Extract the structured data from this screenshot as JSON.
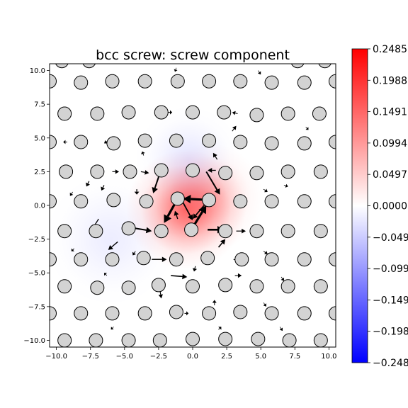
{
  "chart_data": {
    "type": "heatmap",
    "title": "bcc screw: screw component",
    "xlabel": "",
    "ylabel": "",
    "xlim": [
      -10.5,
      10.5
    ],
    "ylim": [
      -10.5,
      10.5
    ],
    "xticks": [
      "−10.0",
      "−7.5",
      "−5.0",
      "−2.5",
      "0.0",
      "2.5",
      "5.0",
      "7.5",
      "10.0"
    ],
    "yticks": [
      "10.0",
      "7.5",
      "5.0",
      "2.5",
      "0.0",
      "−2.5",
      "−5.0",
      "−7.5",
      "−10.0"
    ],
    "colormap": "bwr",
    "colorbar": {
      "range": [
        -0.2485,
        0.2485
      ],
      "ticks": [
        "0.2485",
        "0.1988",
        "0.1491",
        "0.0994",
        "0.0497",
        "0.0000",
        "−0.0497",
        "−0.0994",
        "−0.1491",
        "−0.1988",
        "−0.2485"
      ],
      "colors": {
        "max": "#ff0000",
        "mid": "#ffffff",
        "min": "#0000ff"
      }
    },
    "field_peaks": [
      {
        "x": -0.5,
        "y": -0.3,
        "value": 0.14,
        "spread": 2.2
      },
      {
        "x": 1.2,
        "y": 0.6,
        "value": 0.06,
        "spread": 2.0
      },
      {
        "x": -0.3,
        "y": 3.4,
        "value": -0.025,
        "spread": 2.0
      },
      {
        "x": -6.0,
        "y": -2.5,
        "value": -0.018,
        "spread": 2.5
      }
    ],
    "atoms": {
      "marker_color": "#d3d3d3",
      "edge_color": "#000000",
      "positions": [
        {
          "x": -9.6,
          "y": 10.7
        },
        {
          "x": -7.6,
          "y": 10.7
        },
        {
          "x": 7.7,
          "y": 10.7
        },
        {
          "x": 9.7,
          "y": 10.7
        },
        {
          "x": -10.5,
          "y": 9.2
        },
        {
          "x": -8.2,
          "y": 9.1
        },
        {
          "x": -5.9,
          "y": 9.2
        },
        {
          "x": -3.5,
          "y": 9.2
        },
        {
          "x": -1.1,
          "y": 9.2
        },
        {
          "x": 1.2,
          "y": 9.2
        },
        {
          "x": 3.5,
          "y": 9.2
        },
        {
          "x": 5.8,
          "y": 9.1
        },
        {
          "x": 8.2,
          "y": 9.1
        },
        {
          "x": 10.5,
          "y": 9.2
        },
        {
          "x": -9.4,
          "y": 6.8
        },
        {
          "x": -7.0,
          "y": 6.8
        },
        {
          "x": -4.7,
          "y": 6.9
        },
        {
          "x": -2.3,
          "y": 6.9
        },
        {
          "x": 0.0,
          "y": 6.9
        },
        {
          "x": 2.3,
          "y": 6.9
        },
        {
          "x": 4.7,
          "y": 6.7
        },
        {
          "x": 7.0,
          "y": 6.8
        },
        {
          "x": 9.3,
          "y": 6.8
        },
        {
          "x": -10.5,
          "y": 4.7
        },
        {
          "x": -8.2,
          "y": 4.7
        },
        {
          "x": -5.8,
          "y": 4.6
        },
        {
          "x": -3.5,
          "y": 4.8
        },
        {
          "x": -1.2,
          "y": 4.8
        },
        {
          "x": 1.2,
          "y": 4.8
        },
        {
          "x": 3.5,
          "y": 4.7
        },
        {
          "x": 5.8,
          "y": 4.6
        },
        {
          "x": 8.2,
          "y": 4.6
        },
        {
          "x": 10.5,
          "y": 4.7
        },
        {
          "x": -9.3,
          "y": 2.5
        },
        {
          "x": -7.0,
          "y": 2.5
        },
        {
          "x": -4.6,
          "y": 2.5
        },
        {
          "x": -2.3,
          "y": 2.6
        },
        {
          "x": 0.0,
          "y": 2.6
        },
        {
          "x": 2.4,
          "y": 2.4
        },
        {
          "x": 4.7,
          "y": 2.4
        },
        {
          "x": 7.0,
          "y": 2.5
        },
        {
          "x": 9.4,
          "y": 2.5
        },
        {
          "x": -10.5,
          "y": 0.3
        },
        {
          "x": -8.2,
          "y": 0.3
        },
        {
          "x": -5.8,
          "y": 0.4
        },
        {
          "x": -3.4,
          "y": 0.3
        },
        {
          "x": -1.1,
          "y": 0.5
        },
        {
          "x": 1.2,
          "y": 0.4
        },
        {
          "x": 3.5,
          "y": 0.3
        },
        {
          "x": 5.8,
          "y": 0.3
        },
        {
          "x": 8.2,
          "y": 0.3
        },
        {
          "x": 10.5,
          "y": 0.3
        },
        {
          "x": -9.4,
          "y": -1.9
        },
        {
          "x": -7.1,
          "y": -1.9
        },
        {
          "x": -4.7,
          "y": -1.7
        },
        {
          "x": -2.3,
          "y": -1.9
        },
        {
          "x": -0.1,
          "y": -1.8
        },
        {
          "x": 2.4,
          "y": -1.9
        },
        {
          "x": 4.7,
          "y": -1.9
        },
        {
          "x": 7.0,
          "y": -1.9
        },
        {
          "x": 9.4,
          "y": -1.9
        },
        {
          "x": -10.5,
          "y": -4.0
        },
        {
          "x": -8.2,
          "y": -4.0
        },
        {
          "x": -5.9,
          "y": -4.0
        },
        {
          "x": -3.6,
          "y": -3.9
        },
        {
          "x": -1.2,
          "y": -4.0
        },
        {
          "x": 1.1,
          "y": -3.9
        },
        {
          "x": 3.6,
          "y": -4.0
        },
        {
          "x": 5.8,
          "y": -4.0
        },
        {
          "x": 8.2,
          "y": -4.0
        },
        {
          "x": 10.5,
          "y": -4.0
        },
        {
          "x": -9.4,
          "y": -6.0
        },
        {
          "x": -7.0,
          "y": -6.1
        },
        {
          "x": -4.7,
          "y": -6.1
        },
        {
          "x": -2.5,
          "y": -5.9
        },
        {
          "x": 0.0,
          "y": -6.0
        },
        {
          "x": 2.4,
          "y": -5.9
        },
        {
          "x": 4.7,
          "y": -6.0
        },
        {
          "x": 7.0,
          "y": -6.0
        },
        {
          "x": 9.4,
          "y": -6.0
        },
        {
          "x": -10.5,
          "y": -8.0
        },
        {
          "x": -8.2,
          "y": -8.0
        },
        {
          "x": -5.9,
          "y": -8.0
        },
        {
          "x": -3.5,
          "y": -8.0
        },
        {
          "x": -1.2,
          "y": -7.9
        },
        {
          "x": 1.2,
          "y": -8.0
        },
        {
          "x": 3.5,
          "y": -7.9
        },
        {
          "x": 5.8,
          "y": -8.0
        },
        {
          "x": 8.2,
          "y": -8.0
        },
        {
          "x": 10.5,
          "y": -8.0
        },
        {
          "x": -9.4,
          "y": -10.0
        },
        {
          "x": -7.1,
          "y": -10.0
        },
        {
          "x": -4.7,
          "y": -10.0
        },
        {
          "x": -2.4,
          "y": -10.0
        },
        {
          "x": 0.0,
          "y": -9.9
        },
        {
          "x": 2.4,
          "y": -9.9
        },
        {
          "x": 4.8,
          "y": -9.9
        },
        {
          "x": 7.1,
          "y": -10.0
        },
        {
          "x": 9.4,
          "y": -10.0
        }
      ]
    },
    "arrows": [
      {
        "x1": 1.2,
        "y1": 0.4,
        "x2": -0.7,
        "y2": 0.5,
        "weight": 3.2
      },
      {
        "x1": -1.1,
        "y1": 0.5,
        "x2": -2.1,
        "y2": -1.3,
        "weight": 3.2
      },
      {
        "x1": -0.1,
        "y1": -1.8,
        "x2": 1.0,
        "y2": 0.0,
        "weight": 3.2
      },
      {
        "x1": 1.1,
        "y1": -1.8,
        "x2": 2.3,
        "y2": -1.8,
        "weight": 2.6
      },
      {
        "x1": 1.0,
        "y1": 2.5,
        "x2": 2.0,
        "y2": 0.8,
        "weight": 2.0
      },
      {
        "x1": -2.4,
        "y1": 2.4,
        "x2": -2.9,
        "y2": 0.9,
        "weight": 2.0
      },
      {
        "x1": -4.2,
        "y1": -1.7,
        "x2": -3.0,
        "y2": -1.9,
        "weight": 2.0
      },
      {
        "x1": -0.7,
        "y1": 0.2,
        "x2": 0.0,
        "y2": -1.1,
        "weight": 1.8
      },
      {
        "x1": 1.0,
        "y1": 0.2,
        "x2": 0.0,
        "y2": -1.0,
        "weight": 1.6
      },
      {
        "x1": -1.1,
        "y1": -1.0,
        "x2": -1.3,
        "y2": -0.4,
        "weight": 1.4
      },
      {
        "x1": 1.9,
        "y1": -3.1,
        "x2": 2.4,
        "y2": -2.5,
        "weight": 1.6
      },
      {
        "x1": -1.6,
        "y1": -5.2,
        "x2": -0.4,
        "y2": -5.3,
        "weight": 1.6
      },
      {
        "x1": -3.0,
        "y1": -4.0,
        "x2": -1.9,
        "y2": -4.0,
        "weight": 1.5
      },
      {
        "x1": -5.5,
        "y1": -2.7,
        "x2": -6.2,
        "y2": -3.3,
        "weight": 1.4
      },
      {
        "x1": -6.9,
        "y1": -1.0,
        "x2": -7.4,
        "y2": -1.8,
        "weight": 1.3
      },
      {
        "x1": -4.1,
        "y1": 1.2,
        "x2": -4.1,
        "y2": 0.8,
        "weight": 1.3
      },
      {
        "x1": -6.5,
        "y1": 1.5,
        "x2": -6.7,
        "y2": 1.1,
        "weight": 1.2
      },
      {
        "x1": -7.6,
        "y1": 1.8,
        "x2": -7.8,
        "y2": 1.4,
        "weight": 1.2
      },
      {
        "x1": -3.8,
        "y1": 2.5,
        "x2": -3.2,
        "y2": 2.4,
        "weight": 1.2
      },
      {
        "x1": -5.9,
        "y1": 2.5,
        "x2": -5.4,
        "y2": 2.5,
        "weight": 1.1
      },
      {
        "x1": 1.7,
        "y1": 2.6,
        "x2": 1.1,
        "y2": 2.6,
        "weight": 1.3
      },
      {
        "x1": 1.8,
        "y1": 3.4,
        "x2": 1.5,
        "y2": 3.9,
        "weight": 1.2
      },
      {
        "x1": 3.2,
        "y1": -1.9,
        "x2": 3.9,
        "y2": -1.9,
        "weight": 1.2
      },
      {
        "x1": 3.0,
        "y1": -4.0,
        "x2": 3.4,
        "y2": -4.1,
        "weight": 1.1
      },
      {
        "x1": 3.1,
        "y1": -5.2,
        "x2": 3.6,
        "y2": -5.2,
        "weight": 1.1
      },
      {
        "x1": -2.4,
        "y1": -6.3,
        "x2": -2.3,
        "y2": -6.9,
        "weight": 1.1
      },
      {
        "x1": 0.2,
        "y1": -4.5,
        "x2": 0.1,
        "y2": -4.9,
        "weight": 1.1
      },
      {
        "x1": 1.6,
        "y1": -7.4,
        "x2": 1.6,
        "y2": -7.0,
        "weight": 1.0
      },
      {
        "x1": 1.9,
        "y1": -9.2,
        "x2": 2.1,
        "y2": -9.0,
        "weight": 1.0
      },
      {
        "x1": -0.6,
        "y1": -8.0,
        "x2": -0.3,
        "y2": -8.0,
        "weight": 1.0
      },
      {
        "x1": -1.8,
        "y1": 6.9,
        "x2": -1.5,
        "y2": 6.9,
        "weight": 1.0
      },
      {
        "x1": 3.3,
        "y1": 6.8,
        "x2": 2.9,
        "y2": 6.9,
        "weight": 1.0
      },
      {
        "x1": 2.9,
        "y1": 5.5,
        "x2": 3.2,
        "y2": 5.9,
        "weight": 1.0
      },
      {
        "x1": -3.6,
        "y1": 3.7,
        "x2": -3.7,
        "y2": 4.0,
        "weight": 1.0
      },
      {
        "x1": -6.2,
        "y1": 4.8,
        "x2": -6.5,
        "y2": 4.6,
        "weight": 0.9
      },
      {
        "x1": -9.2,
        "y1": 4.7,
        "x2": -9.5,
        "y2": 4.7,
        "weight": 0.9
      },
      {
        "x1": -4.2,
        "y1": -3.4,
        "x2": -4.4,
        "y2": -3.7,
        "weight": 1.0
      },
      {
        "x1": -8.7,
        "y1": -3.2,
        "x2": -8.9,
        "y2": -3.4,
        "weight": 0.9
      },
      {
        "x1": 5.2,
        "y1": -3.4,
        "x2": 5.5,
        "y2": -3.6,
        "weight": 0.9
      },
      {
        "x1": 5.2,
        "y1": 1.2,
        "x2": 5.5,
        "y2": 1.0,
        "weight": 0.9
      },
      {
        "x1": 6.7,
        "y1": 1.5,
        "x2": 7.0,
        "y2": 1.4,
        "weight": 0.8
      },
      {
        "x1": 6.5,
        "y1": -5.3,
        "x2": 6.7,
        "y2": -5.6,
        "weight": 0.8
      },
      {
        "x1": -6.3,
        "y1": -5.2,
        "x2": -6.5,
        "y2": -5.0,
        "weight": 0.8
      },
      {
        "x1": -8.8,
        "y1": 1.0,
        "x2": -9.0,
        "y2": 0.7,
        "weight": 0.8
      },
      {
        "x1": 8.3,
        "y1": 5.8,
        "x2": 8.5,
        "y2": 5.6,
        "weight": 0.8
      },
      {
        "x1": -1.2,
        "y1": 10.2,
        "x2": -1.3,
        "y2": 9.9,
        "weight": 0.7
      },
      {
        "x1": 5.2,
        "y1": -7.2,
        "x2": 5.4,
        "y2": -7.5,
        "weight": 0.7
      },
      {
        "x1": -5.8,
        "y1": -9.0,
        "x2": -6.0,
        "y2": -9.2,
        "weight": 0.7
      },
      {
        "x1": 6.4,
        "y1": -9.0,
        "x2": 6.6,
        "y2": -9.3,
        "weight": 0.7
      },
      {
        "x1": 4.8,
        "y1": 10.0,
        "x2": 5.0,
        "y2": 9.7,
        "weight": 0.7
      }
    ]
  }
}
